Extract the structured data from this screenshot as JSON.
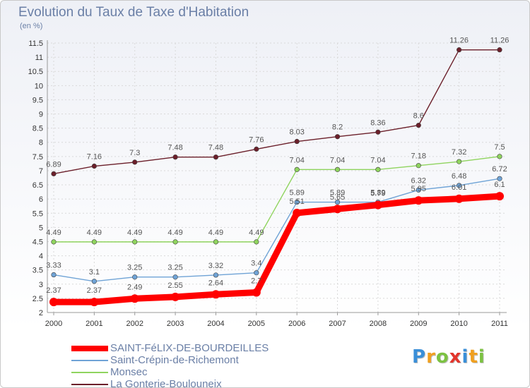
{
  "header": {
    "title": "Evolution du Taux de Taxe d'Habitation",
    "unit": "(en %)"
  },
  "chart_data": {
    "type": "line",
    "title": "Evolution du Taux de Taxe d'Habitation",
    "ylabel": "(en %)",
    "xlabel": "",
    "x": [
      "2000",
      "2001",
      "2002",
      "2003",
      "2004",
      "2005",
      "2006",
      "2007",
      "2008",
      "2009",
      "2010",
      "2011"
    ],
    "ylim": [
      2,
      11.5
    ],
    "yticks": [
      "2",
      "2.5",
      "3",
      "3.5",
      "4",
      "4.5",
      "5",
      "5.5",
      "6",
      "6.5",
      "7",
      "7.5",
      "8",
      "8.5",
      "9",
      "9.5",
      "10",
      "10.5",
      "11",
      "11.5"
    ],
    "legend_position": "bottom-left",
    "series": [
      {
        "name": "La Gonterie-Boulouneix",
        "color": "#6b1f2a",
        "values": [
          6.89,
          7.16,
          7.3,
          7.48,
          7.48,
          7.76,
          8.03,
          8.2,
          8.36,
          8.6,
          11.26,
          11.26
        ],
        "labels": [
          "6.89",
          "7.16",
          "7.3",
          "7.48",
          "7.48",
          "7.76",
          "8.03",
          "8.2",
          "8.36",
          "8.6",
          "11.26",
          "11.26"
        ]
      },
      {
        "name": "Monsec",
        "color": "#8fd45e",
        "values": [
          4.49,
          4.49,
          4.49,
          4.49,
          4.49,
          4.49,
          7.04,
          7.04,
          7.04,
          7.18,
          7.32,
          7.5
        ],
        "labels": [
          "4.49",
          "4.49",
          "4.49",
          "4.49",
          "4.49",
          "4.49",
          "7.04",
          "7.04",
          "7.04",
          "7.18",
          "7.32",
          "7.5"
        ]
      },
      {
        "name": "Saint-Crépin-de-Richemont",
        "color": "#6fa3d6",
        "values": [
          3.33,
          3.1,
          3.25,
          3.25,
          3.32,
          3.4,
          5.89,
          5.89,
          5.89,
          6.32,
          6.48,
          6.72
        ],
        "labels": [
          "3.33",
          "3.1",
          "3.25",
          "3.25",
          "3.32",
          "3.4",
          "5.89",
          "5.89",
          "5.89",
          "6.32",
          "6.48",
          "6.72"
        ]
      },
      {
        "name": "SAINT-FéLIX-DE-BOURDEILLES",
        "color": "#ff0000",
        "values": [
          2.37,
          2.37,
          2.49,
          2.55,
          2.64,
          2.71,
          5.51,
          5.65,
          5.79,
          5.95,
          6.01,
          6.1
        ],
        "labels": [
          "2.37",
          "2.37",
          "2.49",
          "2.55",
          "2.64",
          "2.7",
          "5.51",
          "5.65",
          "5.79",
          "5.95",
          "6.01",
          "6.1"
        ]
      }
    ]
  },
  "legend": {
    "items": [
      {
        "label": "SAINT-FéLIX-DE-BOURDEILLES",
        "color": "#ff0000",
        "thickness": 8
      },
      {
        "label": "Saint-Crépin-de-Richemont",
        "color": "#6fa3d6",
        "thickness": 2
      },
      {
        "label": "Monsec",
        "color": "#8fd45e",
        "thickness": 2
      },
      {
        "label": "La Gonterie-Boulouneix",
        "color": "#6b1f2a",
        "thickness": 2
      }
    ]
  },
  "logo": {
    "letters": [
      "P",
      "r",
      "o",
      "x",
      "i",
      "t",
      "i"
    ],
    "colors": [
      "#3a8fd8",
      "#f0a020",
      "#7cc242",
      "#e2352c",
      "#3a8fd8",
      "#f0a020",
      "#7cc242"
    ]
  }
}
